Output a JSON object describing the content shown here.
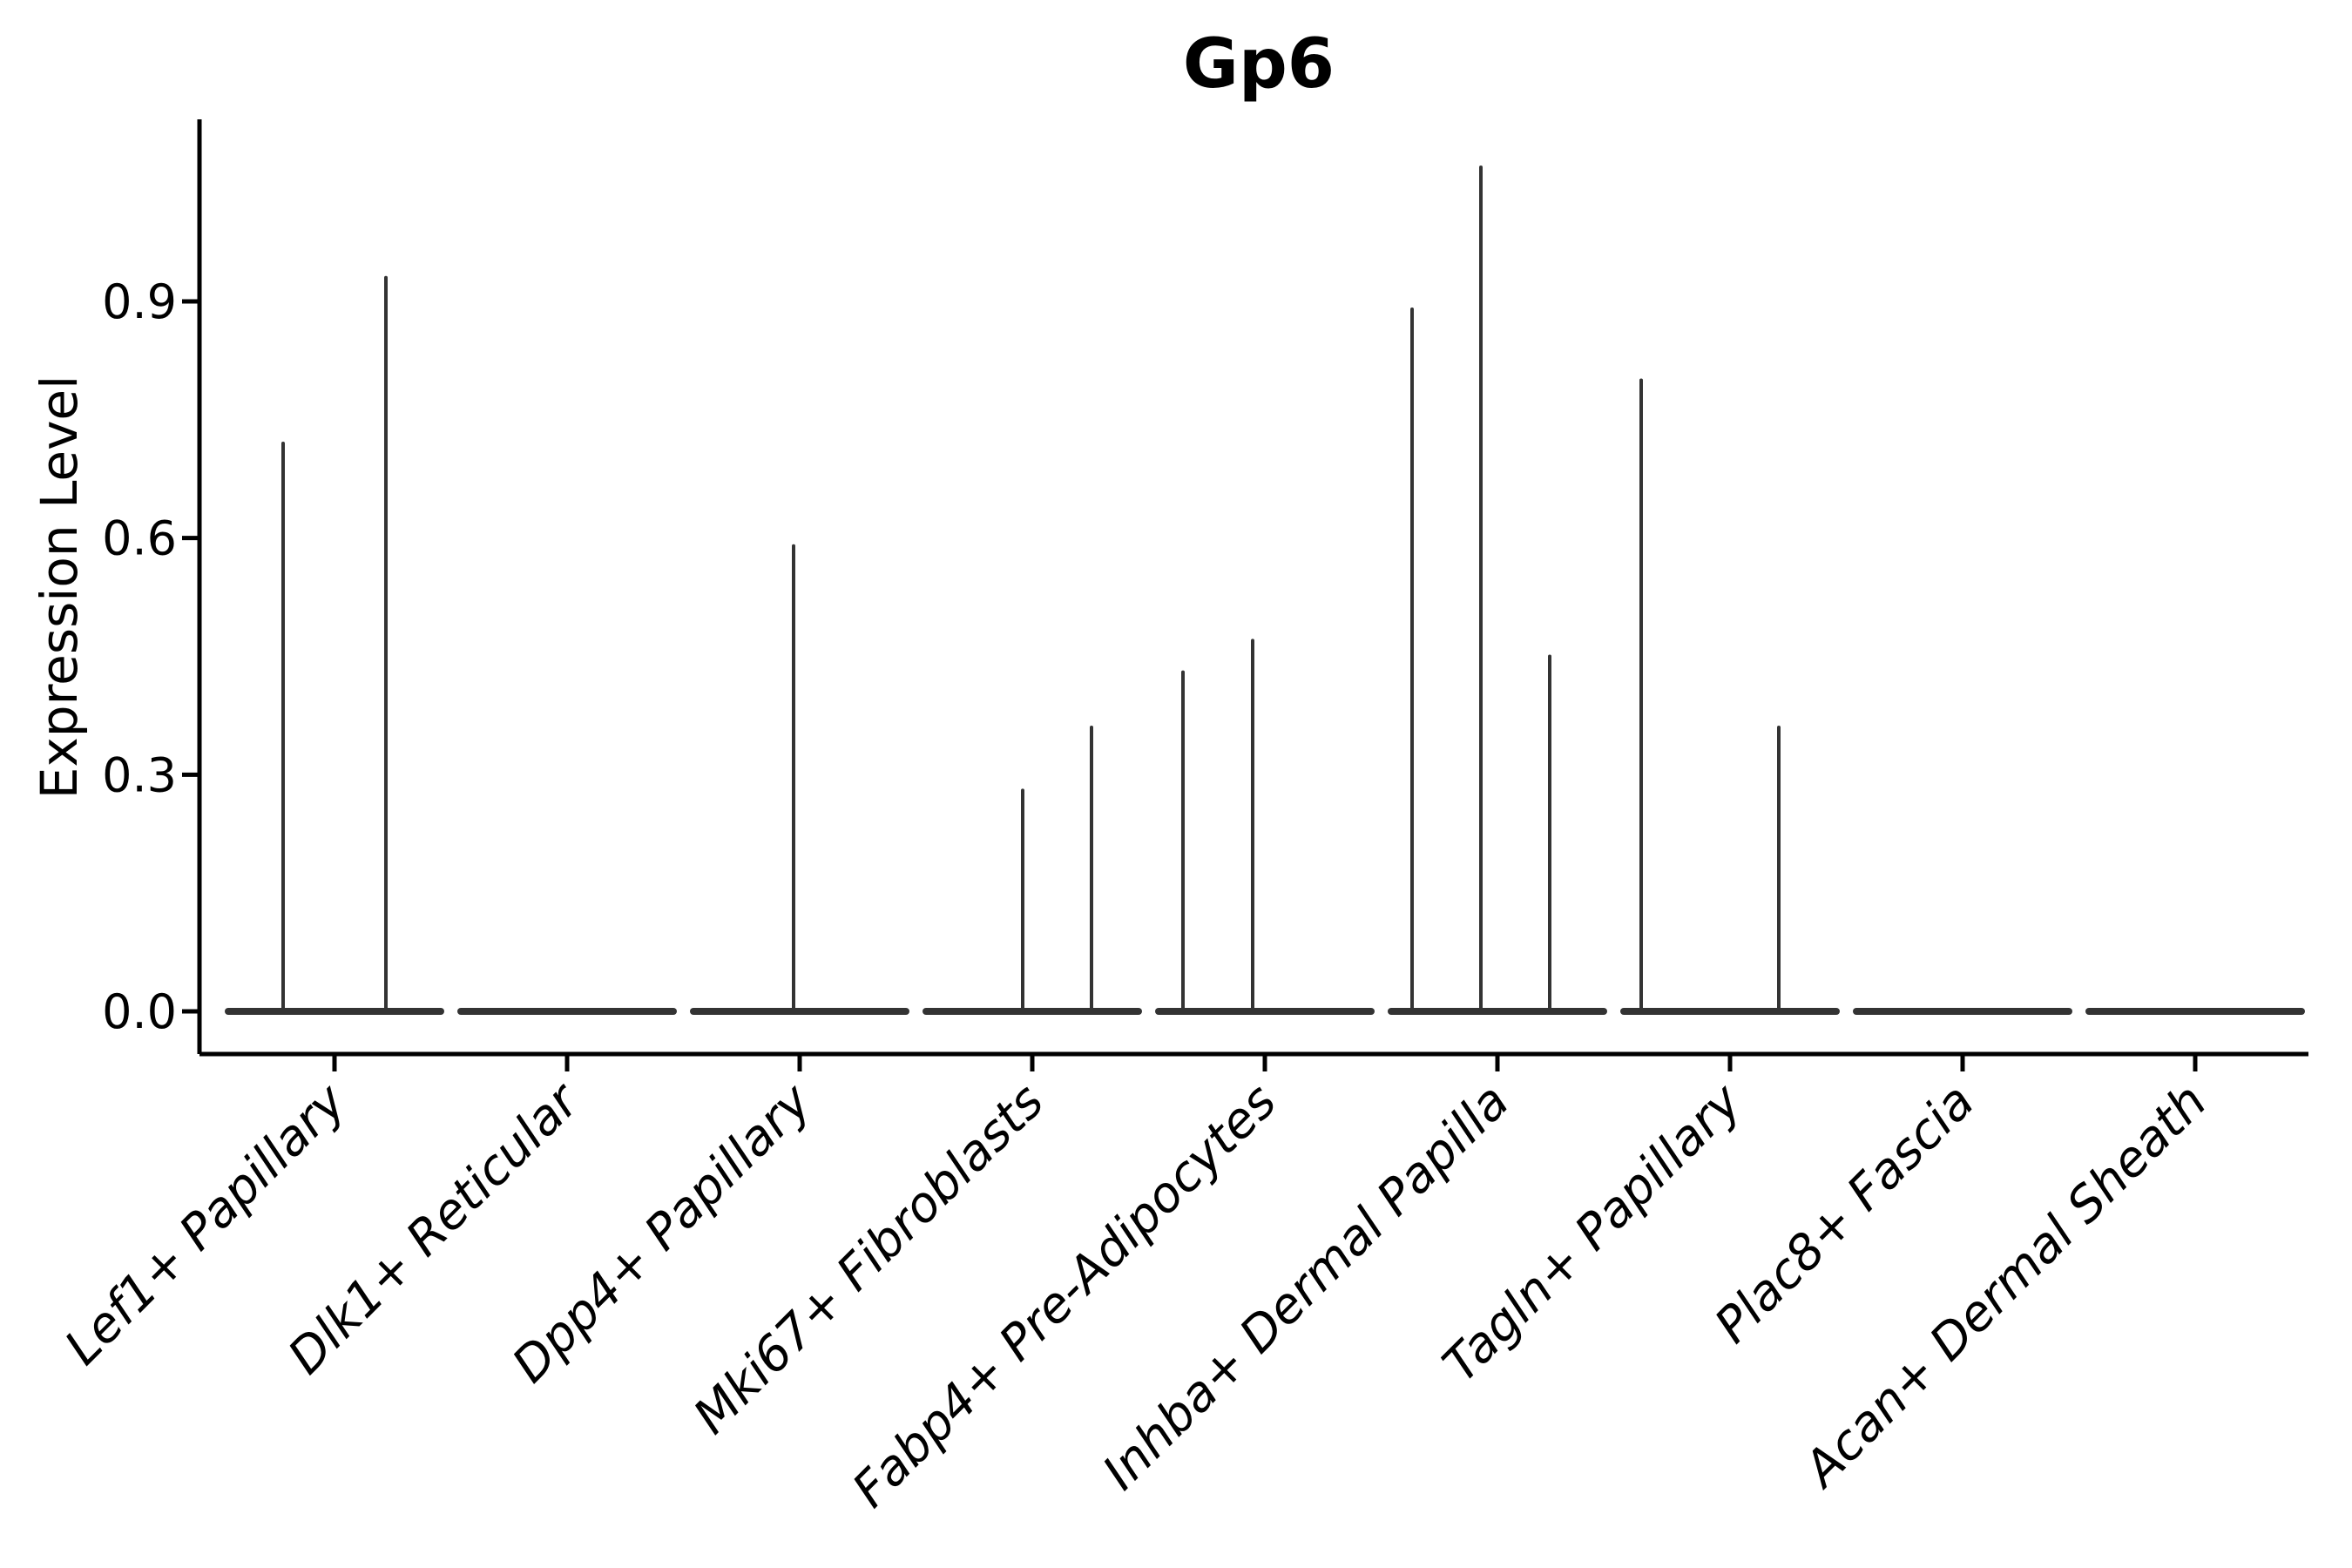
{
  "chart_data": {
    "type": "violin",
    "title": "Gp6",
    "xlabel": "",
    "ylabel": "Expression Level",
    "ylim": [
      0,
      1.13
    ],
    "yticks": [
      0.0,
      0.3,
      0.6,
      0.9
    ],
    "ytick_labels": [
      "0.0",
      "0.3",
      "0.6",
      "0.9"
    ],
    "grid": false,
    "legend": null,
    "categories": [
      "Lef1+ Papillary",
      "Dlk1+ Reticular",
      "Dpp4+ Papillary",
      "Mki67+ Fibroblasts",
      "Fabp4+ Pre-Adipocytes",
      "Inhba+ Dermal Papilla",
      "Tagln+ Papillary",
      "Plac8+ Fascia",
      "Acan+ Dermal Sheath"
    ],
    "series": [
      {
        "category": "Lef1+ Papillary",
        "base_expression": 0.0,
        "peaks": [
          {
            "offset": -59,
            "value": 0.72
          },
          {
            "offset": 59,
            "value": 0.93
          }
        ]
      },
      {
        "category": "Dlk1+ Reticular",
        "base_expression": 0.0,
        "peaks": []
      },
      {
        "category": "Dpp4+ Papillary",
        "base_expression": 0.0,
        "peaks": [
          {
            "offset": -7,
            "value": 0.59
          }
        ]
      },
      {
        "category": "Mki67+ Fibroblasts",
        "base_expression": 0.0,
        "peaks": [
          {
            "offset": -11,
            "value": 0.28
          },
          {
            "offset": 68,
            "value": 0.36
          }
        ]
      },
      {
        "category": "Fabp4+ Pre-Adipocytes",
        "base_expression": 0.0,
        "peaks": [
          {
            "offset": -94,
            "value": 0.43
          },
          {
            "offset": -14,
            "value": 0.47
          }
        ]
      },
      {
        "category": "Inhba+ Dermal Papilla",
        "base_expression": 0.0,
        "peaks": [
          {
            "offset": -98,
            "value": 0.89
          },
          {
            "offset": -19,
            "value": 1.07
          },
          {
            "offset": 60,
            "value": 0.45
          }
        ]
      },
      {
        "category": "Tagln+ Papillary",
        "base_expression": 0.0,
        "peaks": [
          {
            "offset": -102,
            "value": 0.8
          },
          {
            "offset": 56,
            "value": 0.36
          }
        ]
      },
      {
        "category": "Plac8+ Fascia",
        "base_expression": 0.0,
        "peaks": []
      },
      {
        "category": "Acan+ Dermal Sheath",
        "base_expression": 0.0,
        "peaks": []
      }
    ]
  },
  "colors": {
    "violin_line": "#333333",
    "axis": "#000000",
    "text": "#000000",
    "background": "#ffffff"
  }
}
